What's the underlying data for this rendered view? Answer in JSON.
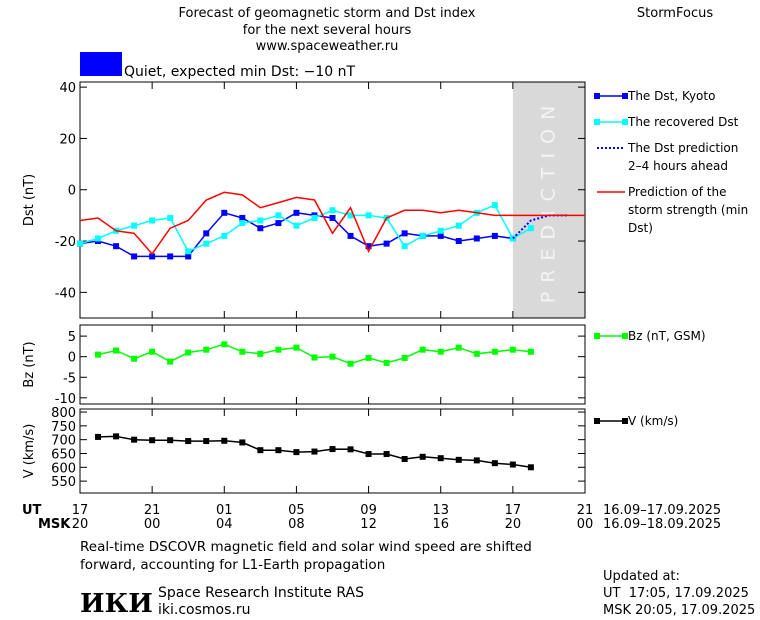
{
  "header": {
    "title_lines": [
      "Forecast of geomagnetic storm and Dst index",
      "for the next several hours",
      "www.spaceweather.ru"
    ],
    "brand": "StormFocus",
    "status": {
      "text": "Quiet, expected min Dst: −10 nT",
      "color": "#0000ff"
    }
  },
  "chart_data": [
    {
      "type": "line",
      "y_label": "Dst (nT)",
      "xlim": [
        0,
        28
      ],
      "ylim": [
        -50,
        42
      ],
      "yticks": [
        40,
        20,
        0,
        -20,
        -40
      ],
      "prediction_region": {
        "x": [
          24,
          28
        ],
        "label": "PREDICTION"
      },
      "series": [
        {
          "name": "The Dst, Kyoto",
          "color": "#0000ff",
          "marker": "square",
          "style": "solid",
          "x": [
            0,
            1,
            2,
            3,
            4,
            5,
            6,
            7,
            8,
            9,
            10,
            11,
            12,
            13,
            14,
            15,
            16,
            17,
            18,
            19,
            20,
            21,
            22,
            23,
            24
          ],
          "values": [
            -21,
            -20,
            -22,
            -26,
            -26,
            -26,
            -26,
            -17,
            -9,
            -11,
            -15,
            -13,
            -9,
            -10,
            -11,
            -18,
            -22,
            -21,
            -17,
            -18,
            -18,
            -20,
            -19,
            -18,
            -19
          ]
        },
        {
          "name": "The recovered Dst",
          "color": "#00ffff",
          "marker": "square",
          "style": "solid",
          "x": [
            0,
            1,
            2,
            3,
            4,
            5,
            6,
            7,
            8,
            9,
            10,
            11,
            12,
            13,
            14,
            15,
            16,
            17,
            18,
            19,
            20,
            21,
            22,
            23,
            24,
            25
          ],
          "values": [
            -21,
            -19,
            -16,
            -14,
            -12,
            -11,
            -24,
            -21,
            -18,
            -13,
            -12,
            -10,
            -14,
            -11,
            -8,
            -10,
            -10,
            -11,
            -22,
            -18,
            -16,
            -14,
            -9,
            -6,
            -19,
            -15
          ]
        },
        {
          "name": "The Dst prediction 2–4 hours ahead",
          "color": "#0000ff",
          "marker": "none",
          "style": "dotted",
          "x": [
            24,
            25,
            26,
            27
          ],
          "values": [
            -19,
            -12,
            -10,
            -10
          ]
        },
        {
          "name": "Prediction of the storm strength (min Dst)",
          "color": "#ff0000",
          "marker": "none",
          "style": "solid",
          "x": [
            0,
            1,
            2,
            3,
            4,
            5,
            6,
            7,
            8,
            9,
            10,
            11,
            12,
            13,
            14,
            15,
            16,
            17,
            18,
            19,
            20,
            21,
            22,
            23,
            24,
            25,
            26,
            27,
            28
          ],
          "values": [
            -12,
            -11,
            -16,
            -17,
            -25,
            -15,
            -12,
            -4,
            -1,
            -2,
            -7,
            -5,
            -3,
            -4,
            -17,
            -7,
            -24,
            -11,
            -8,
            -8,
            -9,
            -8,
            -9,
            -10,
            -10,
            -10,
            -10,
            -10,
            -10
          ]
        }
      ]
    },
    {
      "type": "line",
      "y_label": "Bz (nT)",
      "xlim": [
        0,
        28
      ],
      "ylim": [
        -11.5,
        7.7
      ],
      "yticks": [
        5,
        0,
        -5,
        -10
      ],
      "series": [
        {
          "name": "Bz (nT, GSM)",
          "color": "#00ff00",
          "marker": "square",
          "style": "solid",
          "x": [
            1,
            2,
            3,
            4,
            5,
            6,
            7,
            8,
            9,
            10,
            11,
            12,
            13,
            14,
            15,
            16,
            17,
            18,
            19,
            20,
            21,
            22,
            23,
            24,
            25
          ],
          "values": [
            0.5,
            1.5,
            -0.5,
            1.2,
            -1.2,
            1,
            1.7,
            3,
            1.2,
            0.7,
            1.7,
            2.2,
            -0.2,
            0,
            -1.7,
            -0.3,
            -1.5,
            -0.3,
            1.7,
            1.2,
            2.2,
            0.7,
            1.2,
            1.7,
            1.2
          ]
        }
      ]
    },
    {
      "type": "line",
      "y_label": "V (km/s)",
      "xlim": [
        0,
        28
      ],
      "ylim": [
        507,
        811
      ],
      "yticks": [
        550,
        600,
        650,
        700,
        750,
        800
      ],
      "x_label_ut": "UT",
      "x_label_msk": "MSK",
      "xticks": [
        {
          "value": 0,
          "label": "17"
        },
        {
          "value": 4,
          "label": "21"
        },
        {
          "value": 8,
          "label": "01"
        },
        {
          "value": 12,
          "label": "05"
        },
        {
          "value": 16,
          "label": "09"
        },
        {
          "value": 20,
          "label": "13"
        },
        {
          "value": 24,
          "label": "17"
        },
        {
          "value": 28,
          "label": "21"
        }
      ],
      "xticks_msk": [
        {
          "value": 0,
          "label": "20"
        },
        {
          "value": 4,
          "label": "00"
        },
        {
          "value": 8,
          "label": "04"
        },
        {
          "value": 12,
          "label": "08"
        },
        {
          "value": 16,
          "label": "12"
        },
        {
          "value": 20,
          "label": "16"
        },
        {
          "value": 24,
          "label": "20"
        },
        {
          "value": 28,
          "label": "00"
        }
      ],
      "range_ut": "16.09–17.09.2025",
      "range_msk": "16.09–18.09.2025",
      "series": [
        {
          "name": "V (km/s)",
          "color": "#000000",
          "marker": "square",
          "style": "solid",
          "x": [
            1,
            2,
            3,
            4,
            5,
            6,
            7,
            8,
            9,
            10,
            11,
            12,
            13,
            14,
            15,
            16,
            17,
            18,
            19,
            20,
            21,
            22,
            23,
            24,
            25
          ],
          "values": [
            710,
            712,
            700,
            698,
            698,
            695,
            695,
            696,
            690,
            662,
            662,
            655,
            657,
            666,
            665,
            648,
            648,
            630,
            638,
            633,
            627,
            625,
            615,
            610,
            600
          ]
        }
      ]
    }
  ],
  "footer": {
    "note": "Real-time DSCOVR magnetic field and solar wind speed are shifted forward, accounting for L1-Earth propagation",
    "logo": "ИКИ",
    "institute": "Space Research Institute RAS",
    "site": "iki.cosmos.ru",
    "updated_title": "Updated at:",
    "updated_ut": "UT  17:05, 17.09.2025",
    "updated_msk": "MSK 20:05, 17.09.2025"
  }
}
